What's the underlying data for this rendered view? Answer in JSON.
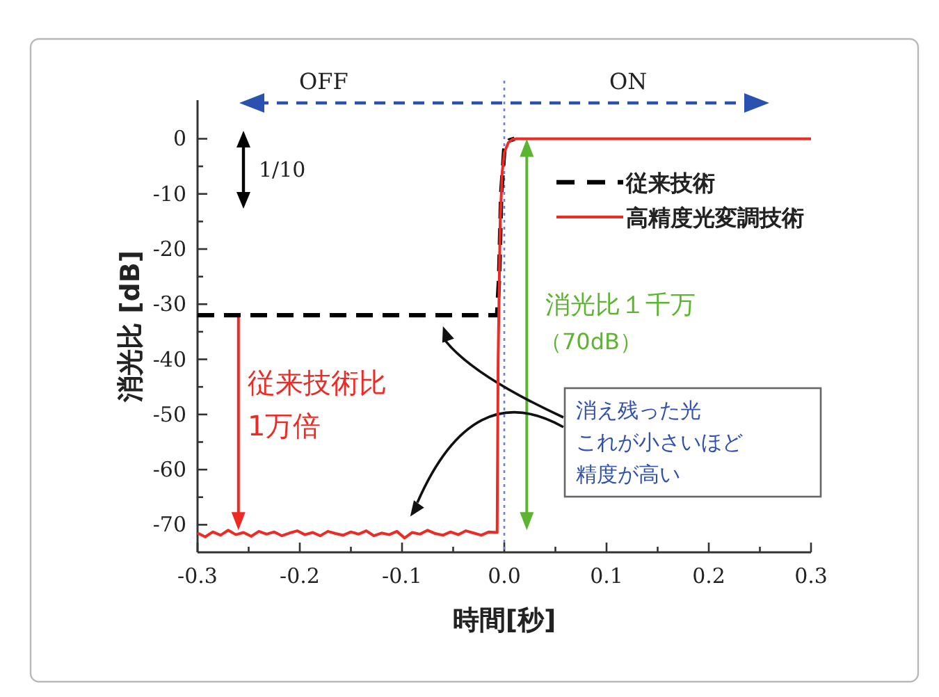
{
  "chart_data": {
    "type": "line",
    "xlabel": "時間[秒]",
    "ylabel": "消光比 [dB]",
    "xlim": [
      -0.3,
      0.3
    ],
    "ylim": [
      -75,
      7
    ],
    "xticks": [
      {
        "value": -0.3,
        "label": "-0.3"
      },
      {
        "value": -0.25,
        "label": null
      },
      {
        "value": -0.2,
        "label": "-0.2"
      },
      {
        "value": -0.15,
        "label": null
      },
      {
        "value": -0.1,
        "label": "-0.1"
      },
      {
        "value": -0.05,
        "label": null
      },
      {
        "value": 0,
        "label": "0.0"
      },
      {
        "value": 0.05,
        "label": null
      },
      {
        "value": 0.1,
        "label": "0.1"
      },
      {
        "value": 0.15,
        "label": null
      },
      {
        "value": 0.2,
        "label": "0.2"
      },
      {
        "value": 0.25,
        "label": null
      },
      {
        "value": 0.3,
        "label": "0.3"
      }
    ],
    "yticks": [
      0,
      {
        "value": -5,
        "label": null
      },
      -10,
      {
        "value": -15,
        "label": null
      },
      -20,
      {
        "value": -25,
        "label": null
      },
      -30,
      {
        "value": -35,
        "label": null
      },
      -40,
      {
        "value": -45,
        "label": null
      },
      -50,
      {
        "value": -55,
        "label": null
      },
      -60,
      {
        "value": -65,
        "label": null
      },
      -70
    ],
    "legend": "top right",
    "grid": false,
    "marker": "none",
    "ref_lines": [
      {
        "axis": "x",
        "value": 0,
        "color": "#7080d8",
        "line_style": "dotted"
      }
    ],
    "annotations": [
      "OFF",
      "ON",
      "1/10",
      "従来技術比",
      "1万倍",
      "消光比１千万",
      "（70dB）",
      "消え残った光",
      "これが小さいほど",
      "精度が高い"
    ],
    "series": [
      {
        "name": "従来技術",
        "color": "#000000",
        "line_style": "dashed",
        "x": [
          -0.3,
          -0.007,
          -0.005,
          -0.003,
          0,
          0.005,
          0.01
        ],
        "values": [
          -32,
          -32,
          -25,
          -10,
          -2,
          -0.3,
          0
        ]
      },
      {
        "name": "高精度光変調技術",
        "color": "#ee2a24",
        "line_style": "solid",
        "x": [
          -0.3,
          -0.2925,
          -0.285,
          -0.2775,
          -0.27,
          -0.2625,
          -0.255,
          -0.2475,
          -0.24,
          -0.2325,
          -0.225,
          -0.2175,
          -0.21,
          -0.2025,
          -0.195,
          -0.1875,
          -0.18,
          -0.1725,
          -0.165,
          -0.1575,
          -0.15,
          -0.1425,
          -0.135,
          -0.1275,
          -0.12,
          -0.1125,
          -0.105,
          -0.0975,
          -0.09,
          -0.0825,
          -0.075,
          -0.0675,
          -0.06,
          -0.0525,
          -0.045,
          -0.0375,
          -0.03,
          -0.0225,
          -0.015,
          -0.007,
          -0.006,
          -0.004,
          -0.002,
          0,
          0.004,
          0.008,
          0.012,
          0.3
        ],
        "values": [
          -71.5,
          -72.2,
          -71.3,
          -71.9,
          -71.0,
          -71.8,
          -71.4,
          -72.1,
          -71.2,
          -71.7,
          -71.3,
          -72.0,
          -71.5,
          -71.1,
          -71.8,
          -71.4,
          -72.0,
          -71.2,
          -71.6,
          -71.9,
          -71.3,
          -71.7,
          -71.1,
          -72.0,
          -71.5,
          -71.8,
          -71.2,
          -72.4,
          -71.4,
          -71.7,
          -71.0,
          -71.6,
          -71.9,
          -71.3,
          -71.8,
          -71.1,
          -71.5,
          -71.9,
          -71.3,
          -71.4,
          -40,
          -15,
          -6,
          -2.5,
          -0.7,
          -0.1,
          0,
          0
        ]
      }
    ]
  }
}
